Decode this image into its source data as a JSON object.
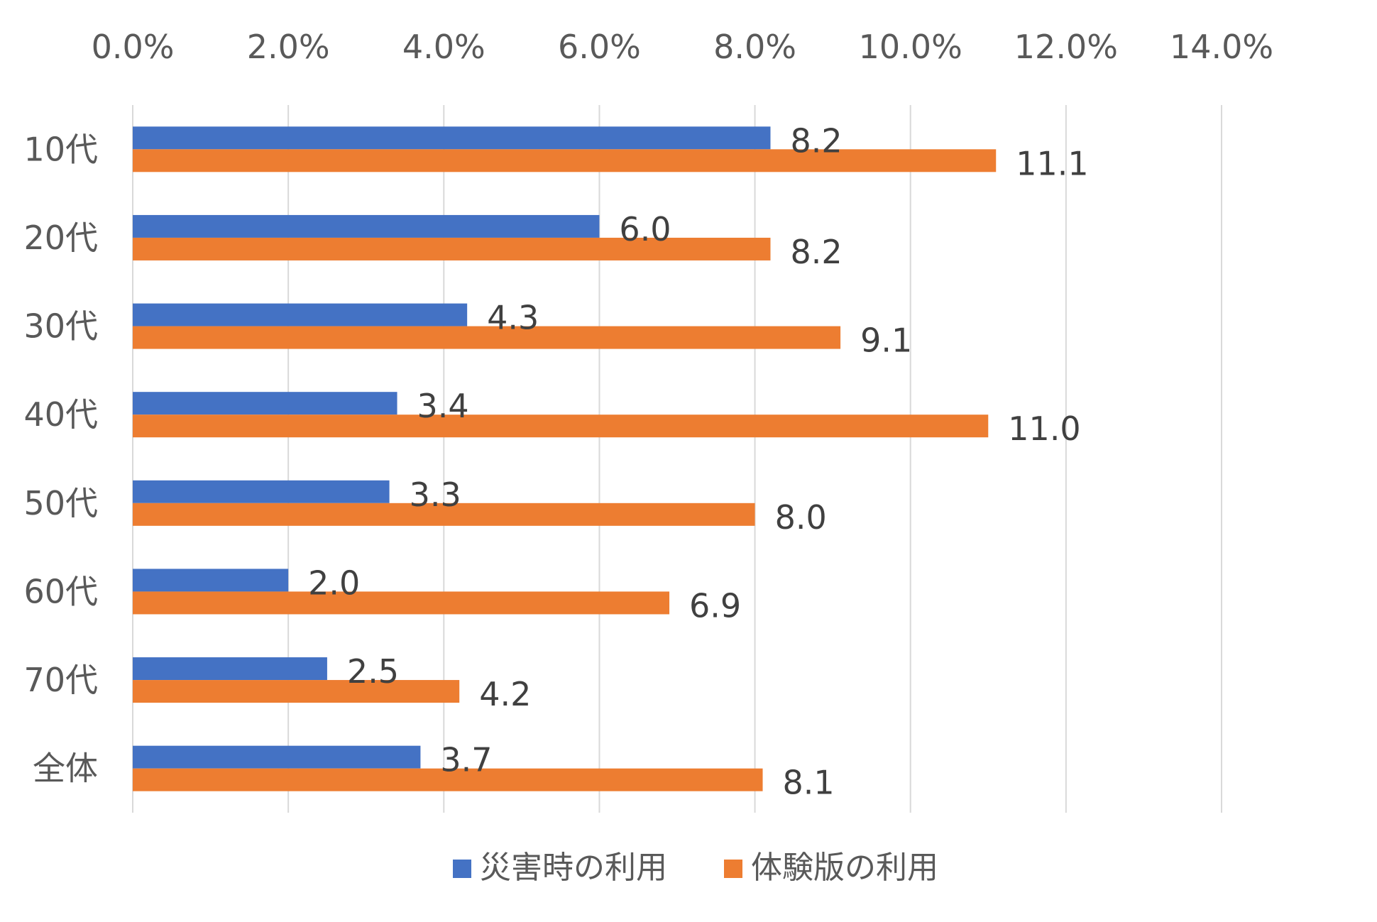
{
  "chart_data": {
    "type": "bar",
    "orientation": "horizontal",
    "title": "",
    "xlabel": "",
    "ylabel": "",
    "categories": [
      "10代",
      "20代",
      "30代",
      "40代",
      "50代",
      "60代",
      "70代",
      "全体"
    ],
    "series": [
      {
        "name": "災害時の利用",
        "color": "#4472C4",
        "values": [
          8.2,
          6.0,
          4.3,
          3.4,
          3.3,
          2.0,
          2.5,
          3.7
        ]
      },
      {
        "name": "体験版の利用",
        "color": "#ED7D31",
        "values": [
          11.1,
          8.2,
          9.1,
          11.0,
          8.0,
          6.9,
          4.2,
          8.1
        ]
      }
    ],
    "xlim": [
      0,
      14
    ],
    "x_ticks": [
      0,
      2,
      4,
      6,
      8,
      10,
      12,
      14
    ],
    "x_tick_labels": [
      "0.0%",
      "2.0%",
      "4.0%",
      "6.0%",
      "8.0%",
      "10.0%",
      "12.0%",
      "14.0%"
    ],
    "x_axis_position": "top",
    "grid": true,
    "legend_position": "bottom-center"
  }
}
